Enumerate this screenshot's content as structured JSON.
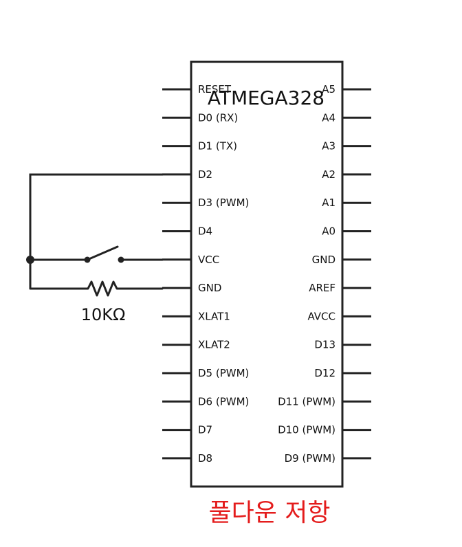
{
  "chip": {
    "title": "ATMEGA328",
    "left_pins": [
      "RESET",
      "D0 (RX)",
      "D1 (TX)",
      "D2",
      "D3 (PWM)",
      "D4",
      "VCC",
      "GND",
      "XLAT1",
      "XLAT2",
      "D5 (PWM)",
      "D6 (PWM)",
      "D7",
      "D8"
    ],
    "right_pins": [
      "A5",
      "A4",
      "A3",
      "A2",
      "A1",
      "A0",
      "GND",
      "AREF",
      "AVCC",
      "D13",
      "D12",
      "D11 (PWM)",
      "D10 (PWM)",
      "D9 (PWM)"
    ]
  },
  "circuit": {
    "resistor_label": "10KΩ",
    "caption": "풀다운 저항"
  },
  "colors": {
    "line": "#222222",
    "caption": "#e41c1c"
  }
}
